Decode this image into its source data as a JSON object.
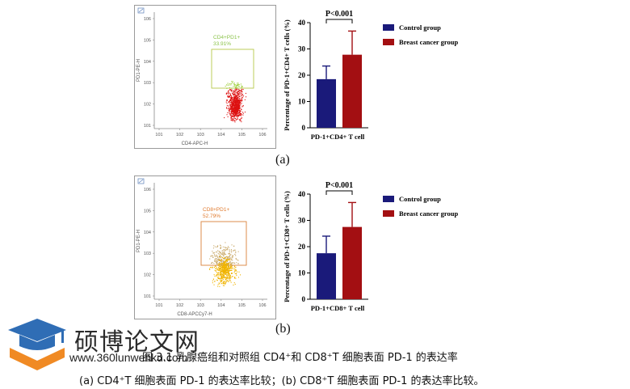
{
  "panel_a": {
    "label": "(a)",
    "flow": {
      "gate_name": "CD4+PD1+",
      "gate_pct": "33.91%",
      "ylabel": "PD1-PE-H",
      "xlabel": "CD4-APC-H",
      "ticks": [
        "10^1",
        "10^2",
        "10^3",
        "10^4",
        "10^5",
        "10^6"
      ],
      "dot_colors": {
        "positive": "#9acd32",
        "negative": "#dd1111",
        "gate": "#b5c84a",
        "text": "#8bc34a"
      }
    },
    "chart_data": {
      "type": "bar",
      "categories": [
        "Control group",
        "Breast cancer group"
      ],
      "values": [
        18.5,
        27.8
      ],
      "errors": [
        5.0,
        9.0
      ],
      "ylabel": "Percentage of PD-1+CD4+ T cells (%)",
      "xlabel": "PD-1+CD4+ T cell",
      "ylim": [
        0,
        40
      ],
      "yticks": [
        "0",
        "10",
        "20",
        "30",
        "40"
      ],
      "significance": "P<0.001",
      "colors": [
        "#1a1a7a",
        "#a30f12"
      ],
      "legend": [
        "Control group",
        "Breast cancer group"
      ]
    }
  },
  "panel_b": {
    "label": "(b)",
    "flow": {
      "gate_name": "CD8+PD1+",
      "gate_pct": "52.79%",
      "ylabel": "PD1-PE-H",
      "xlabel": "CD8-APCCy7-H",
      "ticks": [
        "10^1",
        "10^2",
        "10^3",
        "10^4",
        "10^5",
        "10^6"
      ],
      "dot_colors": {
        "positive": "#c9a96a",
        "negative": "#f0b400",
        "gate": "#d9823b",
        "text": "#e07a2e"
      }
    },
    "chart_data": {
      "type": "bar",
      "categories": [
        "Control group",
        "Breast cancer group"
      ],
      "values": [
        17.5,
        27.5
      ],
      "errors": [
        6.5,
        9.3
      ],
      "ylabel": "Percentage of PD-1+CD8+ T cells (%)",
      "xlabel": "PD-1+CD8+ T cell",
      "ylim": [
        0,
        40
      ],
      "yticks": [
        "0",
        "10",
        "20",
        "30",
        "40"
      ],
      "significance": "P<0.001",
      "colors": [
        "#1a1a7a",
        "#a30f12"
      ],
      "legend": [
        "Control group",
        "Breast cancer group"
      ]
    }
  },
  "watermark": {
    "title": "硕博论文网",
    "url": "www.360lunwenku.com"
  },
  "caption": "图 3.1 乳腺癌组和对照组 CD4⁺和 CD8⁺T 细胞表面 PD-1 的表达率",
  "subcaption": "(a) CD4⁺T 细胞表面 PD-1 的表达率比较；(b) CD8⁺T 细胞表面 PD-1 的表达率比较。"
}
